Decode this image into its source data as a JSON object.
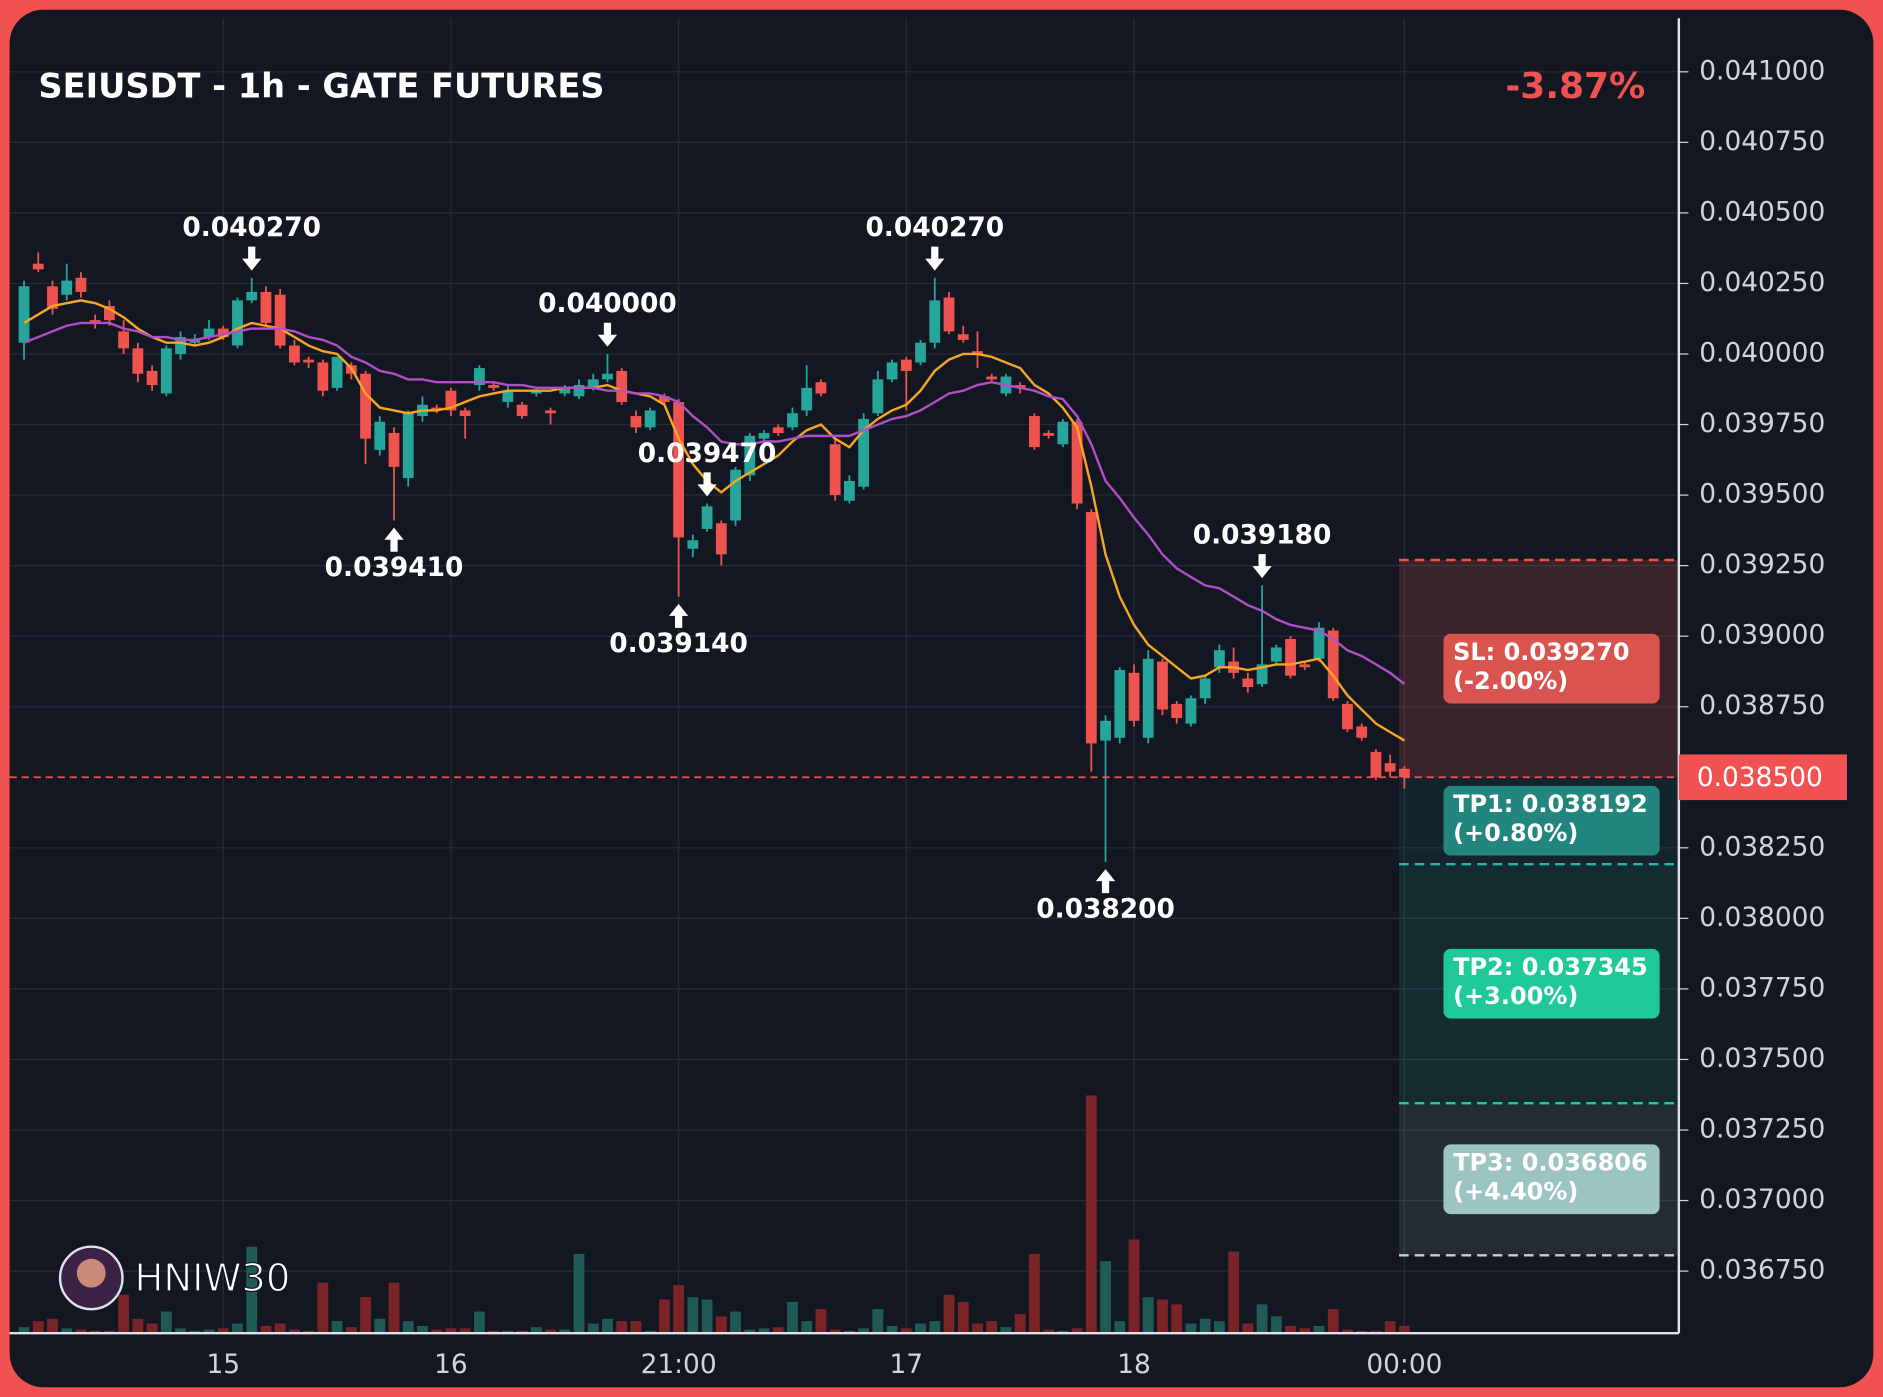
{
  "chart_data": {
    "type": "candlestick",
    "title": "SEIUSDT - 1h - GATE FUTURES",
    "change": "-3.87%",
    "watermark": "HNIW30",
    "categories": [
      null,
      null,
      null,
      null,
      null,
      null,
      null,
      null,
      null,
      null,
      null,
      null,
      null,
      null,
      "15",
      null,
      null,
      null,
      null,
      null,
      null,
      null,
      null,
      null,
      null,
      null,
      null,
      null,
      null,
      null,
      "16",
      null,
      null,
      null,
      null,
      null,
      null,
      null,
      null,
      null,
      null,
      null,
      null,
      null,
      null,
      null,
      "21:00",
      null,
      null,
      null,
      null,
      null,
      null,
      null,
      null,
      null,
      null,
      null,
      null,
      null,
      null,
      null,
      "17",
      null,
      null,
      null,
      null,
      null,
      null,
      null,
      null,
      null,
      null,
      null,
      null,
      null,
      null,
      null,
      "18",
      null,
      null,
      null,
      null,
      null,
      null,
      null,
      null,
      null,
      null,
      null,
      null,
      null,
      null,
      null,
      null,
      null,
      null,
      "00:00"
    ],
    "open": [
      0.04004,
      0.04032,
      0.04024,
      0.04021,
      0.04027,
      0.04012,
      0.04017,
      0.04008,
      0.04002,
      0.03994,
      0.03986,
      0.04,
      0.04004,
      0.04006,
      0.04009,
      0.04003,
      0.04019,
      0.04022,
      0.04021,
      0.04003,
      0.03998,
      0.03997,
      0.03988,
      0.03996,
      0.03993,
      0.03966,
      0.03972,
      0.03956,
      0.03978,
      0.03981,
      0.03987,
      0.0398,
      0.03989,
      0.03989,
      0.03983,
      0.03982,
      0.03986,
      0.0398,
      0.03986,
      0.03985,
      0.03988,
      0.03991,
      0.03994,
      0.03978,
      0.03974,
      0.03985,
      0.03983,
      0.03931,
      0.03938,
      0.0394,
      0.03941,
      0.03957,
      0.0397,
      0.03974,
      0.03974,
      0.0398,
      0.0399,
      0.03968,
      0.03948,
      0.03953,
      0.03979,
      0.03991,
      0.03998,
      0.03997,
      0.04004,
      0.0402,
      0.04007,
      0.04001,
      0.03992,
      0.03986,
      0.03989,
      0.03978,
      0.03972,
      0.03968,
      0.03976,
      0.03944,
      0.03863,
      0.03864,
      0.03887,
      0.03864,
      0.03891,
      0.03876,
      0.03869,
      0.03878,
      0.03889,
      0.03891,
      0.03885,
      0.03883,
      0.03891,
      0.03899,
      0.0389,
      0.03892,
      0.03902,
      0.03876,
      0.03868,
      0.03859,
      0.03855,
      0.03853
    ],
    "high": [
      0.04026,
      0.04036,
      0.04026,
      0.04032,
      0.04029,
      0.04014,
      0.04019,
      0.04012,
      0.04004,
      0.03996,
      0.04003,
      0.04008,
      0.04007,
      0.04012,
      0.0401,
      0.0402,
      0.04027,
      0.04024,
      0.04023,
      0.04005,
      0.03999,
      0.03998,
      0.03999,
      0.03997,
      0.03994,
      0.03978,
      0.03974,
      0.0398,
      0.03985,
      0.03982,
      0.03988,
      0.03981,
      0.03996,
      0.0399,
      0.03989,
      0.03983,
      0.03988,
      0.03981,
      0.03989,
      0.03991,
      0.03993,
      0.04,
      0.03995,
      0.0398,
      0.03981,
      0.03986,
      0.03984,
      0.03936,
      0.03947,
      0.03941,
      0.0396,
      0.03972,
      0.03973,
      0.03975,
      0.03981,
      0.03996,
      0.03991,
      0.0397,
      0.03957,
      0.03979,
      0.03994,
      0.03998,
      0.03999,
      0.04005,
      0.04027,
      0.04022,
      0.0401,
      0.04008,
      0.03993,
      0.03993,
      0.0399,
      0.03979,
      0.03973,
      0.03977,
      0.03977,
      0.03945,
      0.03872,
      0.03889,
      0.0389,
      0.03895,
      0.03892,
      0.03877,
      0.03879,
      0.03886,
      0.03897,
      0.03896,
      0.03887,
      0.03918,
      0.03897,
      0.039,
      0.03891,
      0.03905,
      0.03903,
      0.03877,
      0.03869,
      0.0386,
      0.03858,
      0.03854
    ],
    "low": [
      0.03998,
      0.04029,
      0.04014,
      0.04019,
      0.0402,
      0.04009,
      0.0401,
      0.04,
      0.0399,
      0.03987,
      0.03985,
      0.03998,
      0.04003,
      0.04005,
      0.04005,
      0.04002,
      0.04018,
      0.0401,
      0.04002,
      0.03996,
      0.03995,
      0.03985,
      0.03987,
      0.03991,
      0.03961,
      0.03964,
      0.03941,
      0.03953,
      0.03976,
      0.03979,
      0.03978,
      0.0397,
      0.03987,
      0.03987,
      0.03981,
      0.03977,
      0.03985,
      0.03975,
      0.03985,
      0.03984,
      0.03987,
      0.0399,
      0.03982,
      0.03972,
      0.03973,
      0.03982,
      0.03914,
      0.03928,
      0.03937,
      0.03925,
      0.03939,
      0.03955,
      0.03969,
      0.03971,
      0.03973,
      0.03978,
      0.03985,
      0.03948,
      0.03947,
      0.03952,
      0.03978,
      0.0399,
      0.0398,
      0.03996,
      0.04002,
      0.04007,
      0.04004,
      0.03995,
      0.0399,
      0.03985,
      0.03986,
      0.03966,
      0.0397,
      0.03967,
      0.03945,
      0.03852,
      0.0382,
      0.03862,
      0.03868,
      0.03862,
      0.03872,
      0.03869,
      0.03868,
      0.03876,
      0.03887,
      0.03885,
      0.0388,
      0.03882,
      0.0389,
      0.03885,
      0.03888,
      0.03891,
      0.03877,
      0.03866,
      0.03863,
      0.03849,
      0.0385,
      0.03846
    ],
    "close": [
      0.04024,
      0.0403,
      0.04016,
      0.04026,
      0.04022,
      0.04011,
      0.04012,
      0.04002,
      0.03993,
      0.03989,
      0.04002,
      0.04006,
      0.04005,
      0.04009,
      0.04006,
      0.04019,
      0.04022,
      0.04011,
      0.04003,
      0.03997,
      0.03997,
      0.03987,
      0.03999,
      0.03993,
      0.0397,
      0.03976,
      0.0396,
      0.03979,
      0.03982,
      0.0398,
      0.0398,
      0.03978,
      0.03995,
      0.03988,
      0.03987,
      0.03978,
      0.03987,
      0.03979,
      0.03988,
      0.03989,
      0.03991,
      0.03993,
      0.03983,
      0.03974,
      0.0398,
      0.03983,
      0.03935,
      0.03934,
      0.03946,
      0.03929,
      0.03959,
      0.03971,
      0.03972,
      0.03972,
      0.03979,
      0.03988,
      0.03986,
      0.0395,
      0.03955,
      0.03977,
      0.03991,
      0.03997,
      0.03994,
      0.04004,
      0.04019,
      0.04008,
      0.04005,
      0.04,
      0.03991,
      0.03992,
      0.03988,
      0.03967,
      0.03971,
      0.03976,
      0.03947,
      0.03862,
      0.0387,
      0.03888,
      0.0387,
      0.03892,
      0.03874,
      0.03871,
      0.03878,
      0.03885,
      0.03895,
      0.03887,
      0.03882,
      0.0389,
      0.03896,
      0.03886,
      0.03889,
      0.03903,
      0.03878,
      0.03867,
      0.03864,
      0.0385,
      0.03852,
      0.0385
    ],
    "volume": [
      5,
      10,
      12,
      4,
      3,
      2,
      2,
      32,
      12,
      8,
      18,
      4,
      2,
      3,
      4,
      8,
      72,
      6,
      8,
      3,
      2,
      42,
      10,
      5,
      30,
      12,
      42,
      10,
      6,
      3,
      4,
      4,
      18,
      2,
      2,
      2,
      5,
      3,
      3,
      66,
      8,
      12,
      10,
      10,
      2,
      28,
      40,
      30,
      28,
      14,
      18,
      3,
      4,
      5,
      26,
      10,
      20,
      3,
      2,
      4,
      20,
      6,
      4,
      8,
      10,
      32,
      26,
      8,
      10,
      5,
      16,
      66,
      3,
      2,
      4,
      198,
      60,
      10,
      78,
      30,
      28,
      24,
      8,
      12,
      10,
      68,
      8,
      24,
      14,
      6,
      4,
      6,
      20,
      3,
      2,
      2,
      10,
      6
    ],
    "up_color": "#26a69a",
    "down_color": "#ef5350",
    "overlays": [
      {
        "color": "#f5a623",
        "values": [
          0.04011,
          0.04014,
          0.04017,
          0.04018,
          0.04019,
          0.04018,
          0.04016,
          0.04013,
          0.04009,
          0.04006,
          0.04004,
          0.04004,
          0.04003,
          0.04004,
          0.04006,
          0.04009,
          0.04011,
          0.0401,
          0.04009,
          0.04006,
          0.04003,
          0.04001,
          0.04,
          0.03995,
          0.03986,
          0.03981,
          0.0398,
          0.03979,
          0.0398,
          0.0398,
          0.03981,
          0.03983,
          0.03985,
          0.03986,
          0.03987,
          0.03987,
          0.03987,
          0.03987,
          0.03988,
          0.03988,
          0.03988,
          0.03989,
          0.03987,
          0.03986,
          0.03985,
          0.03982,
          0.0397,
          0.03961,
          0.03955,
          0.03951,
          0.03955,
          0.03958,
          0.03961,
          0.03964,
          0.03969,
          0.03973,
          0.03975,
          0.0397,
          0.03967,
          0.03973,
          0.03977,
          0.0398,
          0.03982,
          0.03987,
          0.03994,
          0.03998,
          0.04,
          0.04,
          0.03999,
          0.03997,
          0.03995,
          0.03989,
          0.03986,
          0.03981,
          0.03974,
          0.03953,
          0.03929,
          0.03914,
          0.03904,
          0.03897,
          0.03893,
          0.03889,
          0.03885,
          0.03886,
          0.03889,
          0.03889,
          0.03888,
          0.03889,
          0.0389,
          0.0389,
          0.03891,
          0.03892,
          0.03886,
          0.03879,
          0.03874,
          0.03869,
          0.03866,
          0.03863
        ]
      },
      {
        "color": "#b04fc7",
        "values": [
          0.04004,
          0.04006,
          0.04008,
          0.0401,
          0.04011,
          0.04011,
          0.04011,
          0.04009,
          0.04008,
          0.04006,
          0.04006,
          0.04005,
          0.04005,
          0.04006,
          0.04007,
          0.04008,
          0.04009,
          0.04009,
          0.04009,
          0.04008,
          0.04006,
          0.04005,
          0.04003,
          0.03999,
          0.03997,
          0.03994,
          0.03993,
          0.03991,
          0.03991,
          0.0399,
          0.0399,
          0.0399,
          0.0399,
          0.0399,
          0.03989,
          0.03989,
          0.03988,
          0.03988,
          0.03988,
          0.03988,
          0.03988,
          0.03987,
          0.03987,
          0.03986,
          0.03986,
          0.03985,
          0.03983,
          0.03978,
          0.03974,
          0.03969,
          0.03968,
          0.03968,
          0.03969,
          0.03969,
          0.0397,
          0.03971,
          0.03971,
          0.03971,
          0.03971,
          0.03973,
          0.03975,
          0.03977,
          0.03978,
          0.0398,
          0.03983,
          0.03986,
          0.03987,
          0.03989,
          0.0399,
          0.03989,
          0.03988,
          0.03987,
          0.03985,
          0.03984,
          0.03978,
          0.03968,
          0.03955,
          0.03949,
          0.03942,
          0.03936,
          0.03929,
          0.03924,
          0.03921,
          0.03918,
          0.03917,
          0.03914,
          0.03911,
          0.03909,
          0.03906,
          0.03904,
          0.03903,
          0.03902,
          0.03899,
          0.03895,
          0.03893,
          0.0389,
          0.03887,
          0.03883
        ]
      }
    ],
    "ylim": [
      0.03653,
      0.04119
    ],
    "yticks": [
      {
        "value": 0.041,
        "label": "0.041000"
      },
      {
        "value": 0.04075,
        "label": "0.040750"
      },
      {
        "value": 0.0405,
        "label": "0.040500"
      },
      {
        "value": 0.04025,
        "label": "0.040250"
      },
      {
        "value": 0.04,
        "label": "0.040000"
      },
      {
        "value": 0.03975,
        "label": "0.039750"
      },
      {
        "value": 0.0395,
        "label": "0.039500"
      },
      {
        "value": 0.03925,
        "label": "0.039250"
      },
      {
        "value": 0.039,
        "label": "0.039000"
      },
      {
        "value": 0.03875,
        "label": "0.038750"
      },
      {
        "value": 0.03825,
        "label": "0.038250"
      },
      {
        "value": 0.038,
        "label": "0.038000"
      },
      {
        "value": 0.03775,
        "label": "0.037750"
      },
      {
        "value": 0.0375,
        "label": "0.037500"
      },
      {
        "value": 0.03725,
        "label": "0.037250"
      },
      {
        "value": 0.037,
        "label": "0.037000"
      },
      {
        "value": 0.03675,
        "label": "0.036750"
      }
    ],
    "grid": true,
    "last_price": {
      "value": 0.0385,
      "label": "0.038500",
      "color": "#f05252"
    },
    "annotations": [
      {
        "text": "0.040270",
        "value": 0.04027
      },
      {
        "text": "0.039410",
        "value": 0.03941
      },
      {
        "text": "0.040000",
        "value": 0.04
      },
      {
        "text": "0.039140",
        "value": 0.03914
      },
      {
        "text": "0.039470",
        "value": 0.03947
      },
      {
        "text": "0.040270",
        "value": 0.04027
      },
      {
        "text": "0.038200",
        "value": 0.0382
      },
      {
        "text": "0.039180",
        "value": 0.03918
      }
    ],
    "levels": [
      {
        "label": "SL: 0.039270",
        "pct": "(-2.00%)",
        "price": 0.03927,
        "color": "#d9534f",
        "line": "#f05252"
      },
      {
        "label": "TP1: 0.038192",
        "pct": "(+0.80%)",
        "price": 0.038192,
        "color": "#22867f",
        "line": "#2bb5a5"
      },
      {
        "label": "TP2: 0.037345",
        "pct": "(+3.00%)",
        "price": 0.037345,
        "color": "#1fc99a",
        "line": "#1fc99a"
      },
      {
        "label": "TP3: 0.036806",
        "pct": "(+4.40%)",
        "price": 0.036806,
        "color": "#9cc4c2",
        "line": "#b8d4d4"
      }
    ]
  }
}
